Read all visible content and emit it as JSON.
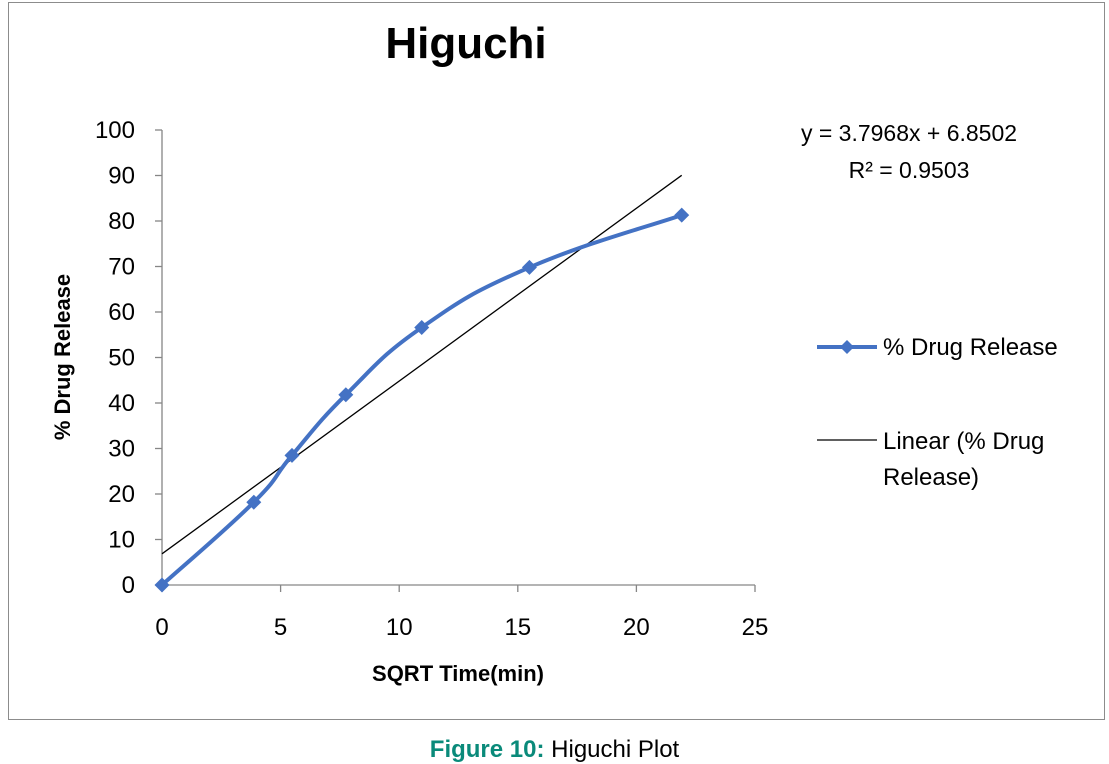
{
  "caption": {
    "label": "Figure 10:",
    "text": " Higuchi Plot"
  },
  "colors": {
    "series": "#4472C4",
    "trendline": "#000000",
    "axis": "#868686",
    "caption_label": "#0a8a7a"
  },
  "chart_data": {
    "type": "line",
    "title": "Higuchi",
    "xlabel": "SQRT Time(min)",
    "ylabel": "% Drug Release",
    "xlim": [
      0,
      25
    ],
    "ylim": [
      0,
      100
    ],
    "xticks": [
      "0",
      "5",
      "10",
      "15",
      "20",
      "25"
    ],
    "yticks": [
      "0",
      "10",
      "20",
      "30",
      "40",
      "50",
      "60",
      "70",
      "80",
      "90",
      "100"
    ],
    "grid": false,
    "legend_position": "right",
    "series": [
      {
        "name": "% Drug Release",
        "marker": "diamond",
        "smooth": true,
        "x": [
          0,
          3.87,
          5.48,
          7.75,
          10.95,
          15.49,
          21.91
        ],
        "y": [
          0,
          18.2,
          28.5,
          41.8,
          56.6,
          69.8,
          81.3
        ]
      }
    ],
    "trendline": {
      "name": "Linear (% Drug Release)",
      "legend_lines": [
        "Linear (% Drug",
        "Release)"
      ],
      "slope": 3.7968,
      "intercept": 6.8502,
      "x_range": [
        0,
        21.91
      ],
      "equation": "y = 3.7968x + 6.8502",
      "r_squared": "R² = 0.9503"
    }
  }
}
